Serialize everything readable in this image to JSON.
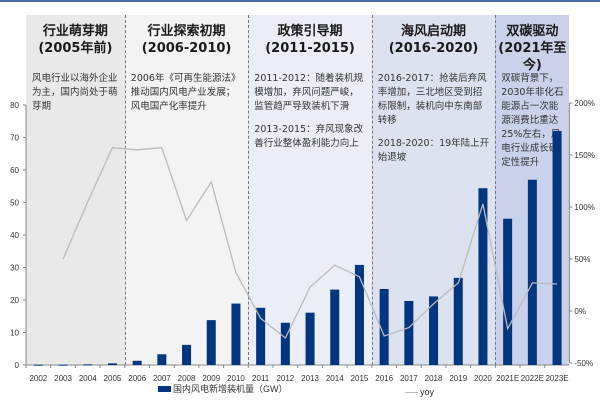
{
  "phases": [
    {
      "title": "行业萌芽期",
      "range": "(2005年前)",
      "desc": [
        "风电行业以海外企业为主，国内尚处于萌芽期"
      ],
      "bg": "#e9e9e9"
    },
    {
      "title": "行业探索初期",
      "range": "(2006-2010)",
      "desc": [
        "2006年《可再生能源法》推动国内风电产业发展；风电国产化率提升"
      ],
      "bg": "#f3f3f3"
    },
    {
      "title": "政策引导期",
      "range": "(2011-2015)",
      "desc": [
        "2011-2012：随着装机规模增加，弃风问题严峻，监管趋严导致装机下滑",
        "2013-2015：弃风现象改善行业整体盈利能力向上"
      ],
      "bg": "#eceef7"
    },
    {
      "title": "海风启动期",
      "range": "(2016-2020)",
      "desc": [
        "2016-2017：抢装后弃风率增加，三北地区受到招标限制，装机向中东南部转移",
        "2018-2020：19年陆上开始退坡"
      ],
      "bg": "#dde2f0"
    },
    {
      "title": "双碳驱动",
      "range": "(2021年至今)",
      "desc": [
        "双碳背景下，2030年非化石能源占一次能源消费比重达25%左右，风电行业成长确定性提升"
      ],
      "bg": "#c9d2ea"
    }
  ],
  "legend": {
    "bar": "国内风电新增装机量（GW）",
    "line": "yoy"
  },
  "colors": {
    "bar": "#003580",
    "line": "#bbbbbb",
    "axis": "#888888"
  },
  "chart_data": {
    "type": "bar",
    "title": "",
    "xlabel": "",
    "ylabel": "",
    "categories": [
      "2002",
      "2003",
      "2004",
      "2005",
      "2006",
      "2007",
      "2008",
      "2009",
      "2010",
      "2011",
      "2012",
      "2013",
      "2014",
      "2015",
      "2016",
      "2017",
      "2018",
      "2019",
      "2020",
      "2021E",
      "2022E",
      "2023E"
    ],
    "series": [
      {
        "name": "国内风电新增装机量（GW）",
        "type": "bar",
        "axis": "left",
        "values": [
          0.1,
          0.1,
          0.2,
          0.5,
          1.3,
          3.3,
          6.2,
          13.8,
          18.9,
          17.6,
          13.0,
          16.1,
          23.2,
          30.8,
          23.4,
          19.7,
          21.1,
          26.8,
          54.4,
          45.0,
          57.0,
          72.0
        ]
      },
      {
        "name": "yoy",
        "type": "line",
        "axis": "right",
        "unit": "%",
        "values": [
          null,
          50,
          105,
          157,
          155,
          157,
          87,
          124,
          37,
          -7,
          -26,
          23,
          44,
          33,
          -24,
          -16,
          7,
          27,
          103,
          -17,
          27,
          26
        ]
      }
    ],
    "ylim": [
      0,
      80
    ],
    "yticks": [
      0,
      10,
      20,
      30,
      40,
      50,
      60,
      70,
      80
    ],
    "y2lim": [
      -50,
      200
    ],
    "y2ticks": [
      "-50%",
      "0%",
      "50%",
      "100%",
      "150%",
      "200%"
    ],
    "grid": false,
    "legend_position": "bottom"
  }
}
